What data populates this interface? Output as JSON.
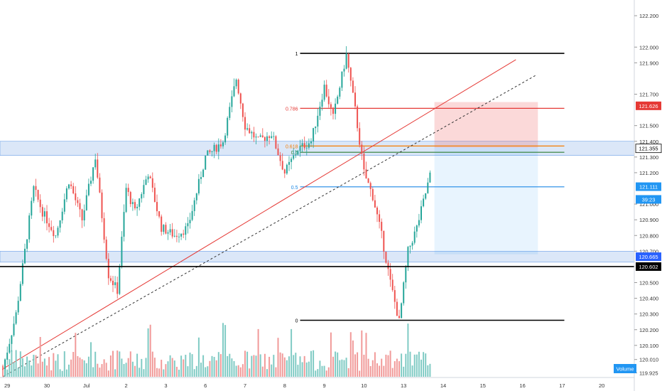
{
  "chart_data": {
    "type": "candlestick",
    "title": "",
    "xlabel": "",
    "ylabel": "",
    "ylim": [
      119.9,
      122.3
    ],
    "price_ticks": [
      "122.200",
      "122.000",
      "121.900",
      "121.700",
      "121.500",
      "121.400",
      "121.300",
      "121.200",
      "121.000",
      "120.900",
      "120.800",
      "120.700",
      "120.500",
      "120.400",
      "120.300",
      "120.200",
      "120.100",
      "120.010",
      "119.925"
    ],
    "date_ticks": [
      {
        "label": "29",
        "bar": 2
      },
      {
        "label": "30",
        "bar": 20
      },
      {
        "label": "Jul",
        "bar": 38
      },
      {
        "label": "2",
        "bar": 56
      },
      {
        "label": "3",
        "bar": 74
      },
      {
        "label": "6",
        "bar": 92
      },
      {
        "label": "7",
        "bar": 110
      },
      {
        "label": "8",
        "bar": 128
      },
      {
        "label": "9",
        "bar": 146
      },
      {
        "label": "10",
        "bar": 164
      },
      {
        "label": "13",
        "bar": 182
      },
      {
        "label": "14",
        "bar": 200
      },
      {
        "label": "15",
        "bar": 218
      },
      {
        "label": "16",
        "bar": 236
      },
      {
        "label": "17",
        "bar": 254
      },
      {
        "label": "20",
        "bar": 272
      }
    ],
    "grid": false,
    "colors": {
      "up": "#26a69a",
      "down": "#ef5350",
      "vol_up": "#80cbc4",
      "vol_down": "#f19a99"
    },
    "price_badges": [
      {
        "text": "121.626",
        "value": 121.626,
        "bg": "#e53935",
        "fg": "#ffffff"
      },
      {
        "text": "121.355",
        "value": 121.355,
        "bg": "#ffffff",
        "fg": "#000000"
      },
      {
        "text": "121.111",
        "value": 121.111,
        "bg": "#2196f3",
        "fg": "#ffffff"
      },
      {
        "text": "39:23",
        "value": 121.03,
        "bg": "#2196f3",
        "fg": "#ffffff"
      },
      {
        "text": "120.665",
        "value": 120.665,
        "bg": "#2962ff",
        "fg": "#ffffff"
      },
      {
        "text": "120.602",
        "value": 120.602,
        "bg": "#000000",
        "fg": "#ffffff"
      }
    ],
    "fibonacci": {
      "start_bar": 135,
      "end_bar": 255,
      "levels": [
        {
          "label": "1",
          "value": 121.96,
          "color": "#000000"
        },
        {
          "label": "0.786",
          "value": 121.61,
          "color": "#e53935"
        },
        {
          "label": "0.618",
          "value": 121.37,
          "color": "#f57c00"
        },
        {
          "label": "0.5",
          "value": 121.33,
          "color": "#2e7d32"
        },
        {
          "label": "0.5",
          "value": 121.11,
          "color": "#1e88e5"
        },
        {
          "label": "0",
          "value": 120.26,
          "color": "#000000"
        }
      ]
    },
    "zones": [
      {
        "from": 121.31,
        "to": 121.4,
        "color": "#dbe7f8"
      },
      {
        "from": 120.63,
        "to": 120.7,
        "color": "#dbe7f8"
      }
    ],
    "horizontal_line": {
      "value": 120.602,
      "color": "#000000"
    },
    "position_box": {
      "start_bar": 196,
      "end_bar": 243,
      "stop": 121.65,
      "entry": 121.36,
      "target": 120.68
    },
    "trendlines": [
      {
        "style": "solid",
        "color": "#e53935",
        "from": {
          "bar": 0,
          "price": 119.95
        },
        "to": {
          "bar": 233,
          "price": 121.92
        }
      },
      {
        "style": "dashed",
        "color": "#333333",
        "from": {
          "bar": 0,
          "price": 119.9
        },
        "to": {
          "bar": 242,
          "price": 121.82
        }
      }
    ],
    "volume_label": "Volume",
    "series": [
      {
        "name": "",
        "values": []
      }
    ]
  }
}
